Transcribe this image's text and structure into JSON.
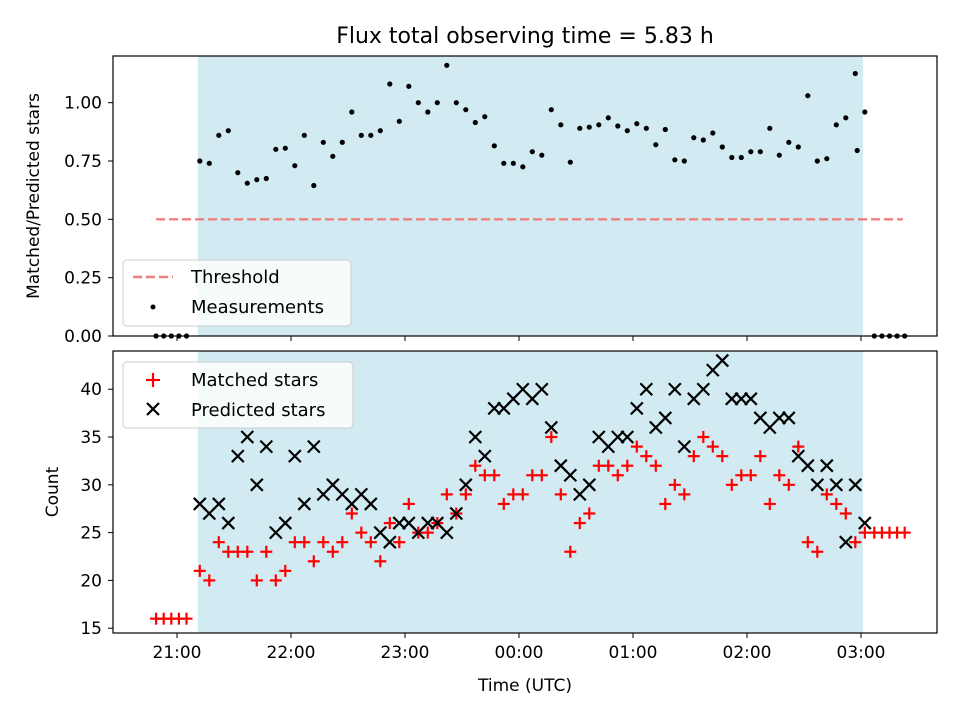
{
  "title": "Flux total observing time = 5.83 h",
  "chart_data": [
    {
      "type": "scatter",
      "ylabel": "Matched/Predicted stars",
      "ylim": [
        0.0,
        1.2
      ],
      "xlim": [
        "20:35",
        "03:40"
      ],
      "yticks": [
        "0.00",
        "0.25",
        "0.50",
        "0.75",
        "1.00"
      ],
      "observing_window": {
        "start": "21:11",
        "end": "03:01",
        "color": "#add8e6"
      },
      "legend": {
        "placement": "lower-left",
        "entries": [
          "Threshold",
          "Measurements"
        ]
      },
      "threshold": {
        "name": "Threshold",
        "value": 0.5,
        "x_start": "20:49",
        "x_end": "03:22",
        "color": "#f08080"
      },
      "measurements": {
        "name": "Measurements",
        "color": "#000000",
        "points": [
          [
            "20:49",
            0.0
          ],
          [
            "20:53",
            0.0
          ],
          [
            "20:57",
            0.0
          ],
          [
            "21:01",
            0.0
          ],
          [
            "21:05",
            0.0
          ],
          [
            "21:12",
            0.75
          ],
          [
            "21:17",
            0.74
          ],
          [
            "21:22",
            0.86
          ],
          [
            "21:27",
            0.88
          ],
          [
            "21:32",
            0.7
          ],
          [
            "21:37",
            0.655
          ],
          [
            "21:42",
            0.67
          ],
          [
            "21:47",
            0.675
          ],
          [
            "21:52",
            0.8
          ],
          [
            "21:57",
            0.805
          ],
          [
            "22:02",
            0.73
          ],
          [
            "22:07",
            0.86
          ],
          [
            "22:12",
            0.645
          ],
          [
            "22:17",
            0.83
          ],
          [
            "22:22",
            0.77
          ],
          [
            "22:27",
            0.83
          ],
          [
            "22:32",
            0.96
          ],
          [
            "22:37",
            0.86
          ],
          [
            "22:42",
            0.86
          ],
          [
            "22:47",
            0.88
          ],
          [
            "22:52",
            1.08
          ],
          [
            "22:57",
            0.92
          ],
          [
            "23:02",
            1.07
          ],
          [
            "23:07",
            1.0
          ],
          [
            "23:12",
            0.96
          ],
          [
            "23:17",
            1.0
          ],
          [
            "23:22",
            1.16
          ],
          [
            "23:27",
            1.0
          ],
          [
            "23:32",
            0.97
          ],
          [
            "23:37",
            0.915
          ],
          [
            "23:42",
            0.94
          ],
          [
            "23:47",
            0.815
          ],
          [
            "23:52",
            0.74
          ],
          [
            "23:57",
            0.74
          ],
          [
            "00:02",
            0.725
          ],
          [
            "00:07",
            0.79
          ],
          [
            "00:12",
            0.775
          ],
          [
            "00:17",
            0.97
          ],
          [
            "00:22",
            0.905
          ],
          [
            "00:27",
            0.745
          ],
          [
            "00:32",
            0.89
          ],
          [
            "00:37",
            0.895
          ],
          [
            "00:42",
            0.905
          ],
          [
            "00:47",
            0.935
          ],
          [
            "00:52",
            0.9
          ],
          [
            "00:57",
            0.88
          ],
          [
            "01:02",
            0.91
          ],
          [
            "01:07",
            0.89
          ],
          [
            "01:12",
            0.82
          ],
          [
            "01:17",
            0.885
          ],
          [
            "01:22",
            0.755
          ],
          [
            "01:27",
            0.75
          ],
          [
            "01:32",
            0.85
          ],
          [
            "01:37",
            0.84
          ],
          [
            "01:42",
            0.87
          ],
          [
            "01:47",
            0.81
          ],
          [
            "01:52",
            0.765
          ],
          [
            "01:57",
            0.765
          ],
          [
            "02:02",
            0.79
          ],
          [
            "02:07",
            0.79
          ],
          [
            "02:12",
            0.89
          ],
          [
            "02:17",
            0.775
          ],
          [
            "02:22",
            0.83
          ],
          [
            "02:27",
            0.81
          ],
          [
            "02:32",
            1.03
          ],
          [
            "02:37",
            0.75
          ],
          [
            "02:42",
            0.76
          ],
          [
            "02:47",
            0.905
          ],
          [
            "02:52",
            0.935
          ],
          [
            "02:57",
            1.125
          ],
          [
            "03:02",
            0.96
          ],
          [
            "02:58",
            0.795
          ],
          [
            "03:07",
            0.0
          ],
          [
            "03:11",
            0.0
          ],
          [
            "03:15",
            0.0
          ],
          [
            "03:19",
            0.0
          ],
          [
            "03:23",
            0.0
          ]
        ]
      }
    },
    {
      "type": "scatter",
      "ylabel": "Count",
      "xlabel": "Time (UTC)",
      "ylim": [
        14.5,
        44
      ],
      "xlim": [
        "20:35",
        "03:40"
      ],
      "yticks": [
        "15",
        "20",
        "25",
        "30",
        "35",
        "40"
      ],
      "xticks": [
        "21:00",
        "22:00",
        "23:00",
        "00:00",
        "01:00",
        "02:00",
        "03:00"
      ],
      "observing_window": {
        "start": "21:11",
        "end": "03:01",
        "color": "#add8e6"
      },
      "legend": {
        "placement": "upper-left",
        "entries": [
          "Matched stars",
          "Predicted stars"
        ]
      },
      "series": [
        {
          "name": "Matched stars",
          "marker": "+",
          "color": "#ff0000",
          "points": [
            [
              "20:49",
              16
            ],
            [
              "20:53",
              16
            ],
            [
              "20:57",
              16
            ],
            [
              "21:01",
              16
            ],
            [
              "21:05",
              16
            ],
            [
              "21:12",
              21
            ],
            [
              "21:17",
              20
            ],
            [
              "21:22",
              24
            ],
            [
              "21:27",
              23
            ],
            [
              "21:32",
              23
            ],
            [
              "21:37",
              23
            ],
            [
              "21:42",
              20
            ],
            [
              "21:47",
              23
            ],
            [
              "21:52",
              20
            ],
            [
              "21:57",
              21
            ],
            [
              "22:02",
              24
            ],
            [
              "22:07",
              24
            ],
            [
              "22:12",
              22
            ],
            [
              "22:17",
              24
            ],
            [
              "22:22",
              23
            ],
            [
              "22:27",
              24
            ],
            [
              "22:32",
              27
            ],
            [
              "22:37",
              25
            ],
            [
              "22:42",
              24
            ],
            [
              "22:47",
              22
            ],
            [
              "22:52",
              26
            ],
            [
              "22:57",
              24
            ],
            [
              "23:02",
              28
            ],
            [
              "23:07",
              25
            ],
            [
              "23:12",
              25
            ],
            [
              "23:17",
              26
            ],
            [
              "23:22",
              29
            ],
            [
              "23:27",
              27
            ],
            [
              "23:32",
              29
            ],
            [
              "23:37",
              32
            ],
            [
              "23:42",
              31
            ],
            [
              "23:47",
              31
            ],
            [
              "23:52",
              28
            ],
            [
              "23:57",
              29
            ],
            [
              "00:02",
              29
            ],
            [
              "00:07",
              31
            ],
            [
              "00:12",
              31
            ],
            [
              "00:17",
              35
            ],
            [
              "00:22",
              29
            ],
            [
              "00:27",
              23
            ],
            [
              "00:32",
              26
            ],
            [
              "00:37",
              27
            ],
            [
              "00:42",
              32
            ],
            [
              "00:47",
              32
            ],
            [
              "00:52",
              31
            ],
            [
              "00:57",
              32
            ],
            [
              "01:02",
              34
            ],
            [
              "01:07",
              33
            ],
            [
              "01:12",
              32
            ],
            [
              "01:17",
              28
            ],
            [
              "01:22",
              30
            ],
            [
              "01:27",
              29
            ],
            [
              "01:32",
              33
            ],
            [
              "01:37",
              35
            ],
            [
              "01:42",
              34
            ],
            [
              "01:47",
              33
            ],
            [
              "01:52",
              30
            ],
            [
              "01:57",
              31
            ],
            [
              "02:02",
              31
            ],
            [
              "02:07",
              33
            ],
            [
              "02:12",
              28
            ],
            [
              "02:17",
              31
            ],
            [
              "02:22",
              30
            ],
            [
              "02:27",
              34
            ],
            [
              "02:32",
              24
            ],
            [
              "02:37",
              23
            ],
            [
              "02:42",
              29
            ],
            [
              "02:47",
              28
            ],
            [
              "02:52",
              27
            ],
            [
              "02:57",
              24
            ],
            [
              "03:02",
              25
            ],
            [
              "03:07",
              25
            ],
            [
              "03:11",
              25
            ],
            [
              "03:15",
              25
            ],
            [
              "03:19",
              25
            ],
            [
              "03:23",
              25
            ]
          ]
        },
        {
          "name": "Predicted stars",
          "marker": "x",
          "color": "#000000",
          "points": [
            [
              "21:12",
              28
            ],
            [
              "21:17",
              27
            ],
            [
              "21:22",
              28
            ],
            [
              "21:27",
              26
            ],
            [
              "21:32",
              33
            ],
            [
              "21:37",
              35
            ],
            [
              "21:42",
              30
            ],
            [
              "21:47",
              34
            ],
            [
              "21:52",
              25
            ],
            [
              "21:57",
              26
            ],
            [
              "22:02",
              33
            ],
            [
              "22:07",
              28
            ],
            [
              "22:12",
              34
            ],
            [
              "22:17",
              29
            ],
            [
              "22:22",
              30
            ],
            [
              "22:27",
              29
            ],
            [
              "22:32",
              28
            ],
            [
              "22:37",
              29
            ],
            [
              "22:42",
              28
            ],
            [
              "22:47",
              25
            ],
            [
              "22:52",
              24
            ],
            [
              "22:57",
              26
            ],
            [
              "23:02",
              26
            ],
            [
              "23:07",
              25
            ],
            [
              "23:12",
              26
            ],
            [
              "23:17",
              26
            ],
            [
              "23:22",
              25
            ],
            [
              "23:27",
              27
            ],
            [
              "23:32",
              30
            ],
            [
              "23:37",
              35
            ],
            [
              "23:42",
              33
            ],
            [
              "23:47",
              38
            ],
            [
              "23:52",
              38
            ],
            [
              "23:57",
              39
            ],
            [
              "00:02",
              40
            ],
            [
              "00:07",
              39
            ],
            [
              "00:12",
              40
            ],
            [
              "00:17",
              36
            ],
            [
              "00:22",
              32
            ],
            [
              "00:27",
              31
            ],
            [
              "00:32",
              29
            ],
            [
              "00:37",
              30
            ],
            [
              "00:42",
              35
            ],
            [
              "00:47",
              34
            ],
            [
              "00:52",
              35
            ],
            [
              "00:57",
              35
            ],
            [
              "01:02",
              38
            ],
            [
              "01:07",
              40
            ],
            [
              "01:12",
              36
            ],
            [
              "01:17",
              37
            ],
            [
              "01:22",
              40
            ],
            [
              "01:27",
              34
            ],
            [
              "01:32",
              39
            ],
            [
              "01:37",
              40
            ],
            [
              "01:42",
              42
            ],
            [
              "01:47",
              43
            ],
            [
              "01:52",
              39
            ],
            [
              "01:57",
              39
            ],
            [
              "02:02",
              39
            ],
            [
              "02:07",
              37
            ],
            [
              "02:12",
              36
            ],
            [
              "02:17",
              37
            ],
            [
              "02:22",
              37
            ],
            [
              "02:27",
              33
            ],
            [
              "02:32",
              32
            ],
            [
              "02:37",
              30
            ],
            [
              "02:42",
              32
            ],
            [
              "02:47",
              30
            ],
            [
              "02:52",
              24
            ],
            [
              "02:57",
              30
            ],
            [
              "03:02",
              26
            ]
          ]
        }
      ]
    }
  ]
}
